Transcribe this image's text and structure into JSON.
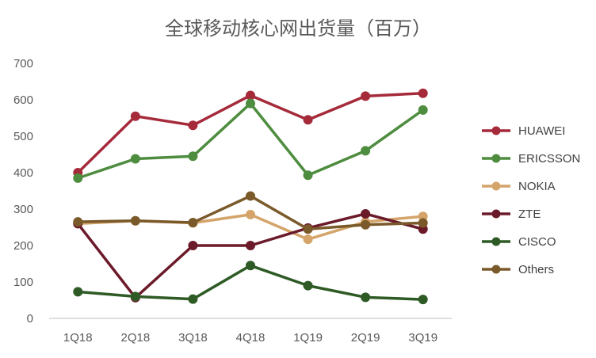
{
  "chart_data": {
    "type": "line",
    "title": "全球移动核心网出货量（百万）",
    "categories": [
      "1Q18",
      "2Q18",
      "3Q18",
      "4Q18",
      "1Q19",
      "2Q19",
      "3Q19"
    ],
    "ylim": [
      0,
      700
    ],
    "yticks": [
      0,
      100,
      200,
      300,
      400,
      500,
      600,
      700
    ],
    "grid": false,
    "legend_position": "right",
    "series": [
      {
        "name": "HUAWEI",
        "color": "#a52a3a",
        "values": [
          400,
          555,
          530,
          612,
          545,
          610,
          618
        ]
      },
      {
        "name": "ERICSSON",
        "color": "#4e8c3f",
        "values": [
          385,
          438,
          445,
          590,
          393,
          460,
          572
        ]
      },
      {
        "name": "NOKIA",
        "color": "#d4a46a",
        "values": [
          260,
          268,
          262,
          285,
          217,
          265,
          280
        ]
      },
      {
        "name": "ZTE",
        "color": "#6b1a2a",
        "values": [
          260,
          57,
          200,
          200,
          248,
          287,
          245
        ]
      },
      {
        "name": "CISCO",
        "color": "#2e5a25",
        "values": [
          73,
          60,
          53,
          145,
          90,
          58,
          52
        ]
      },
      {
        "name": "Others",
        "color": "#7a5a2a",
        "values": [
          265,
          268,
          263,
          336,
          245,
          257,
          262
        ]
      }
    ]
  }
}
